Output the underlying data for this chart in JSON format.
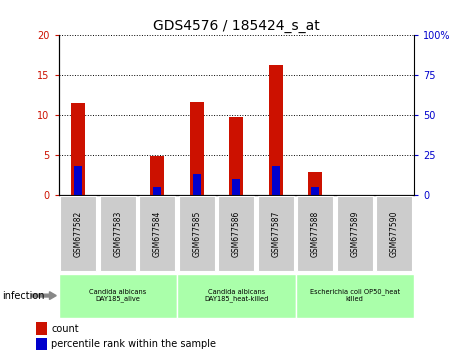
{
  "title": "GDS4576 / 185424_s_at",
  "samples": [
    "GSM677582",
    "GSM677583",
    "GSM677584",
    "GSM677585",
    "GSM677586",
    "GSM677587",
    "GSM677588",
    "GSM677589",
    "GSM677590"
  ],
  "count_values": [
    11.5,
    0,
    4.8,
    11.7,
    9.8,
    16.3,
    2.8,
    0,
    0
  ],
  "percentile_values": [
    18,
    0,
    5,
    13,
    10,
    18,
    5,
    0,
    0
  ],
  "left_ylim": [
    0,
    20
  ],
  "right_ylim": [
    0,
    100
  ],
  "left_yticks": [
    0,
    5,
    10,
    15,
    20
  ],
  "right_yticks": [
    0,
    25,
    50,
    75,
    100
  ],
  "right_yticklabels": [
    "0",
    "25",
    "50",
    "75",
    "100%"
  ],
  "bar_color": "#cc1100",
  "percentile_color": "#0000cc",
  "grid_color": "#000000",
  "tick_label_bg": "#cccccc",
  "group_bg": "#aaffaa",
  "groups": [
    {
      "label": "Candida albicans\nDAY185_alive",
      "start": 0,
      "end": 3
    },
    {
      "label": "Candida albicans\nDAY185_heat-killed",
      "start": 3,
      "end": 6
    },
    {
      "label": "Escherichia coli OP50_heat\nkilled",
      "start": 6,
      "end": 9
    }
  ],
  "infection_label": "infection",
  "legend_count_label": "count",
  "legend_percentile_label": "percentile rank within the sample",
  "bar_width": 0.35,
  "percentile_bar_width": 0.2,
  "fig_width": 4.5,
  "fig_height": 3.54,
  "dpi": 100
}
